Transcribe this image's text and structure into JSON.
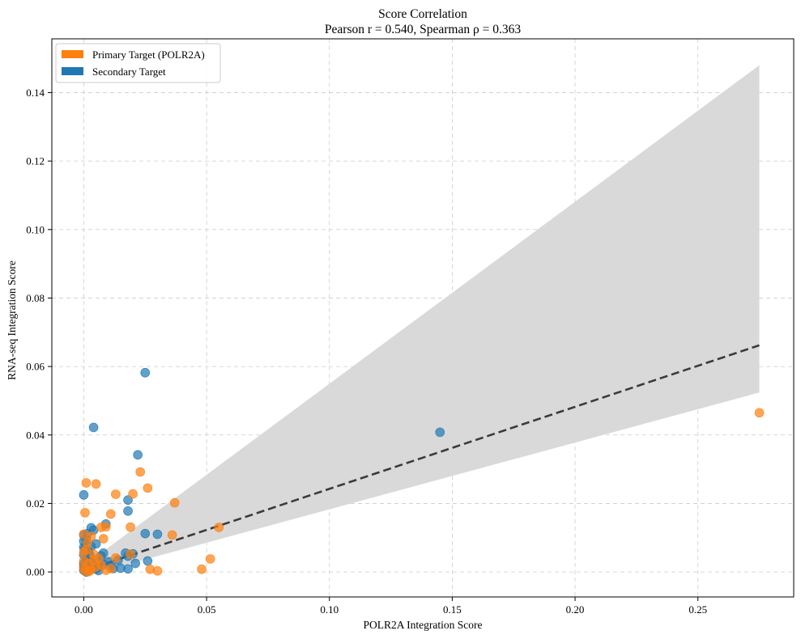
{
  "chart_data": {
    "type": "scatter",
    "title": "Score Correlation",
    "subtitle": "Pearson r = 0.540, Spearman ρ = 0.363",
    "xlabel": "POLR2A Integration Score",
    "ylabel": "RNA-seq Integration Score",
    "xlim": [
      -0.013,
      0.289
    ],
    "ylim": [
      -0.0073,
      0.1557
    ],
    "x_ticks": [
      0.0,
      0.05,
      0.1,
      0.15,
      0.2,
      0.25
    ],
    "x_tick_labels": [
      "0.00",
      "0.05",
      "0.10",
      "0.15",
      "0.20",
      "0.25"
    ],
    "y_ticks": [
      0.0,
      0.02,
      0.04,
      0.06,
      0.08,
      0.1,
      0.12,
      0.14
    ],
    "y_tick_labels": [
      "0.00",
      "0.02",
      "0.04",
      "0.06",
      "0.08",
      "0.10",
      "0.12",
      "0.14"
    ],
    "grid": true,
    "legend_position": "top-left",
    "series": [
      {
        "name": "Primary Target (POLR2A)",
        "color": "#ff7f0e",
        "points": [
          [
            0.275,
            0.0465
          ],
          [
            0.055,
            0.013
          ],
          [
            0.0515,
            0.0038
          ],
          [
            0.048,
            0.0008
          ],
          [
            0.037,
            0.0202
          ],
          [
            0.036,
            0.0108
          ],
          [
            0.03,
            0.0003
          ],
          [
            0.027,
            0.0008
          ],
          [
            0.026,
            0.0245
          ],
          [
            0.023,
            0.0292
          ],
          [
            0.02,
            0.0228
          ],
          [
            0.019,
            0.0131
          ],
          [
            0.019,
            0.0052
          ],
          [
            0.013,
            0.0227
          ],
          [
            0.011,
            0.0169
          ],
          [
            0.009,
            0.0132
          ],
          [
            0.008,
            0.0097
          ],
          [
            0.007,
            0.013
          ],
          [
            0.005,
            0.0257
          ],
          [
            0.001,
            0.026
          ],
          [
            0.0005,
            0.0173
          ],
          [
            0.003,
            0.0104
          ],
          [
            0.004,
            0.0052
          ],
          [
            0.006,
            0.004
          ],
          [
            0.002,
            0.0025
          ],
          [
            0.001,
            0.0065
          ],
          [
            0.0,
            0.0058
          ],
          [
            0.003,
            0.0006
          ],
          [
            0.009,
            0.0005
          ],
          [
            0.011,
            0.001
          ],
          [
            0.005,
            0.0015
          ],
          [
            0.0,
            0.0032
          ],
          [
            0.002,
            0.0001
          ],
          [
            0.0,
            0.011
          ],
          [
            0.0015,
            0.0085
          ],
          [
            0.004,
            0.0033
          ],
          [
            0.007,
            0.0021
          ],
          [
            0.013,
            0.0041
          ],
          [
            0.0,
            0.0012
          ],
          [
            0.0005,
            0.0003
          ]
        ]
      },
      {
        "name": "Secondary Target",
        "color": "#1f77b4",
        "points": [
          [
            0.145,
            0.0408
          ],
          [
            0.025,
            0.0582
          ],
          [
            0.004,
            0.0422
          ],
          [
            0.022,
            0.0342
          ],
          [
            0.018,
            0.021
          ],
          [
            0.018,
            0.0178
          ],
          [
            0.025,
            0.0112
          ],
          [
            0.03,
            0.011
          ],
          [
            0.026,
            0.0032
          ],
          [
            0.021,
            0.0025
          ],
          [
            0.018,
            0.0009
          ],
          [
            0.015,
            0.0011
          ],
          [
            0.02,
            0.0053
          ],
          [
            0.018,
            0.0046
          ],
          [
            0.017,
            0.0055
          ],
          [
            0.009,
            0.014
          ],
          [
            0.008,
            0.0055
          ],
          [
            0.007,
            0.0047
          ],
          [
            0.005,
            0.0082
          ],
          [
            0.004,
            0.0122
          ],
          [
            0.003,
            0.0129
          ],
          [
            0.003,
            0.0074
          ],
          [
            0.0,
            0.0225
          ],
          [
            0.0,
            0.0108
          ],
          [
            0.0,
            0.009
          ],
          [
            0.0,
            0.0072
          ],
          [
            0.0,
            0.005
          ],
          [
            0.0,
            0.0025
          ],
          [
            0.0,
            0.0005
          ],
          [
            0.001,
            0.0095
          ],
          [
            0.001,
            0.004
          ],
          [
            0.002,
            0.006
          ],
          [
            0.002,
            0.0015
          ],
          [
            0.003,
            0.003
          ],
          [
            0.004,
            0.0019
          ],
          [
            0.006,
            0.0028
          ],
          [
            0.006,
            0.0004
          ],
          [
            0.008,
            0.0022
          ],
          [
            0.01,
            0.003
          ],
          [
            0.011,
            0.0018
          ],
          [
            0.012,
            0.001
          ],
          [
            0.014,
            0.0035
          ],
          [
            0.001,
            0.0
          ],
          [
            0.0,
            0.0016
          ],
          [
            0.0005,
            0.0068
          ],
          [
            0.0015,
            0.0112
          ],
          [
            0.0025,
            0.0048
          ],
          [
            0.005,
            0.0009
          ]
        ]
      }
    ],
    "trend_line": {
      "color": "#3b3b3b",
      "style": "dashed",
      "points": [
        [
          0.0,
          0.0003
        ],
        [
          0.275,
          0.0662
        ]
      ]
    },
    "confidence_band": {
      "color": "#d9d9d9",
      "x": [
        0.0,
        0.275
      ],
      "upper": [
        0.0018,
        0.148
      ],
      "lower": [
        -0.0012,
        0.0524
      ]
    }
  }
}
